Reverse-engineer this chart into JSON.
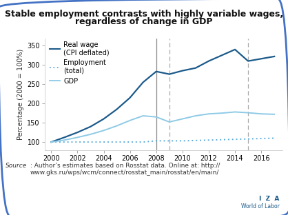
{
  "title_line1": "Stable employment contrasts with highly variable wages,",
  "title_line2": "regardless of change in GDP",
  "ylabel": "Percentage (2000 = 100%)",
  "source_italic": "Source",
  "source_rest": ": Author’s estimates based on Rosstat data. Online at: http://\nwww.gks.ru/wps/wcm/connect/rosstat_main/rosstat/en/main/",
  "iza_line1": "I  Z  A",
  "iza_line2": "World of Labor",
  "years_real_wage": [
    2000,
    2001,
    2002,
    2003,
    2004,
    2005,
    2006,
    2007,
    2008,
    2009,
    2010,
    2011,
    2012,
    2013,
    2014,
    2015,
    2016,
    2017
  ],
  "real_wage": [
    100,
    112,
    125,
    140,
    160,
    185,
    215,
    255,
    283,
    276,
    285,
    292,
    310,
    325,
    340,
    310,
    316,
    322
  ],
  "years_employment": [
    2000,
    2001,
    2002,
    2003,
    2004,
    2005,
    2006,
    2007,
    2008,
    2009,
    2010,
    2011,
    2012,
    2013,
    2014,
    2015,
    2016,
    2017
  ],
  "employment": [
    100,
    100,
    100,
    100,
    100,
    100,
    100,
    100,
    103,
    103,
    103,
    104,
    105,
    106,
    107,
    108,
    109,
    110
  ],
  "years_gdp": [
    2000,
    2001,
    2002,
    2003,
    2004,
    2005,
    2006,
    2007,
    2008,
    2009,
    2010,
    2011,
    2012,
    2013,
    2014,
    2015,
    2016,
    2017
  ],
  "gdp": [
    100,
    105,
    112,
    120,
    130,
    142,
    156,
    168,
    165,
    152,
    160,
    168,
    173,
    175,
    178,
    176,
    173,
    172
  ],
  "vline_solid_x": 2008,
  "vline_dashed_x1": 2009,
  "vline_dashed_x2": 2015,
  "xlim": [
    1999.5,
    2017.6
  ],
  "ylim": [
    78,
    368
  ],
  "yticks": [
    100,
    150,
    200,
    250,
    300,
    350
  ],
  "xticks": [
    2000,
    2002,
    2004,
    2006,
    2008,
    2010,
    2012,
    2014,
    2016
  ],
  "real_wage_color": "#1b5a8a",
  "employment_color": "#5aacdb",
  "gdp_color": "#8ecae6",
  "vline_solid_color": "#888888",
  "vline_dashed_color": "#aaaaaa",
  "border_color": "#4472c4",
  "title_fontsize": 9.0,
  "label_fontsize": 7.0,
  "tick_fontsize": 7.0,
  "legend_fontsize": 7.0,
  "source_fontsize": 6.5,
  "iza_color": "#1b5a8a"
}
